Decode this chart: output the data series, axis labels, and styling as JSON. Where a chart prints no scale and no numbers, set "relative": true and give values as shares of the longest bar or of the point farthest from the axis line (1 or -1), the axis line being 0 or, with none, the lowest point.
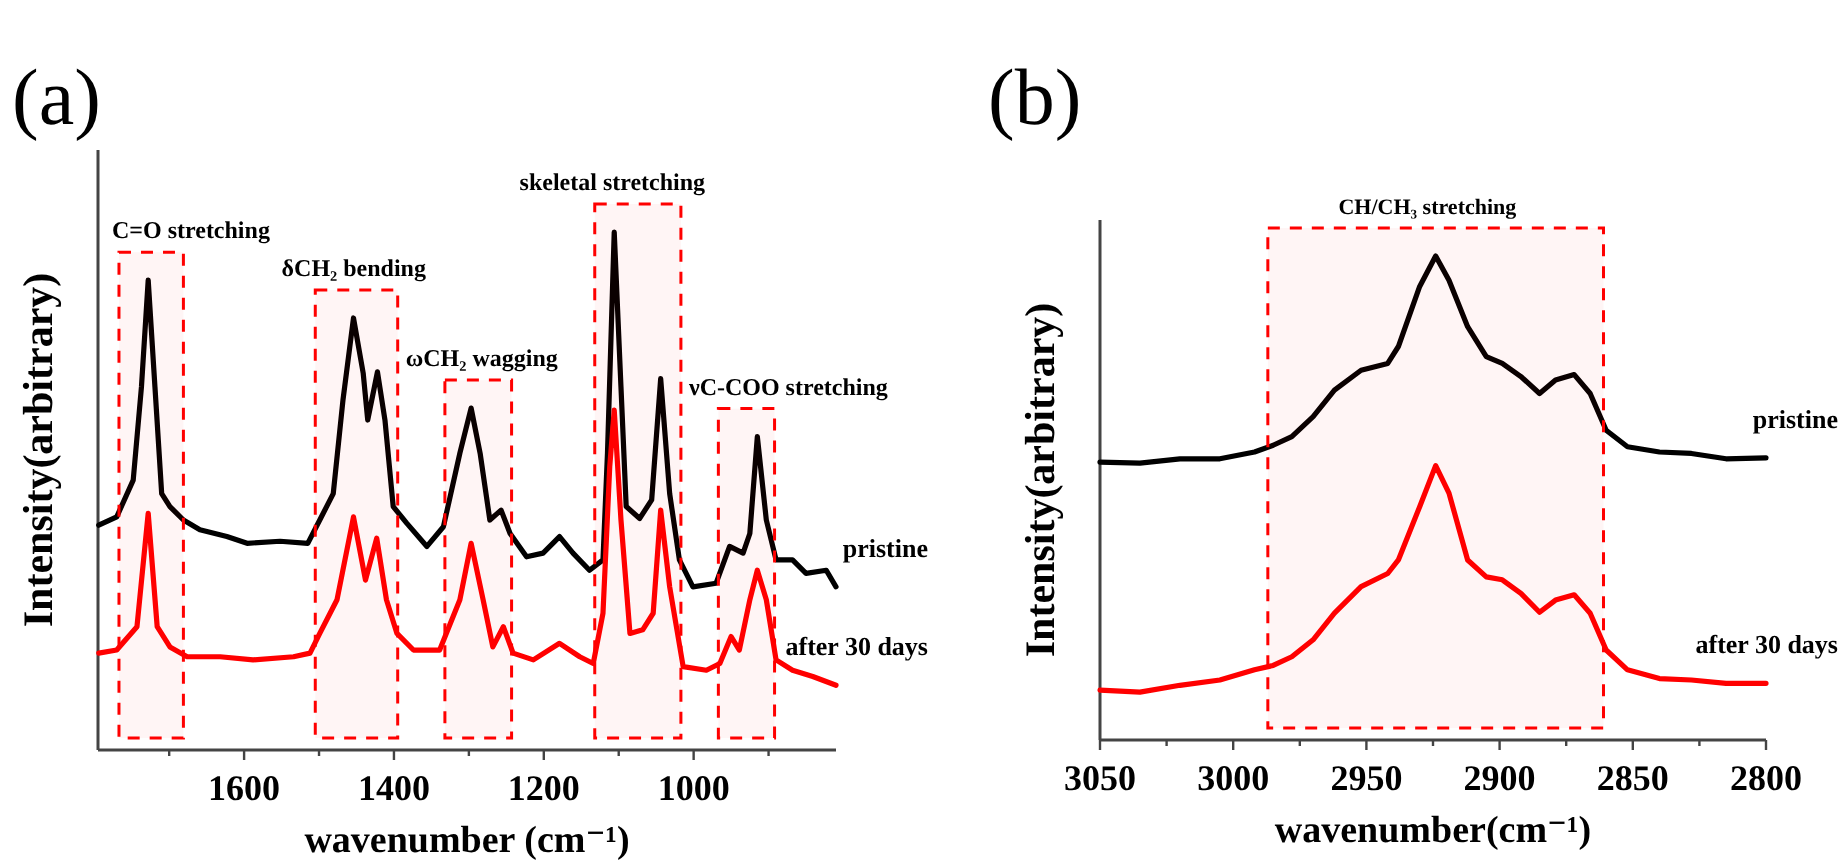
{
  "chart_data": [
    {
      "type": "line",
      "title": "(a)",
      "xlabel": "wavenumber (cm⁻¹)",
      "ylabel": "Intensity(arbitrary)",
      "relative": true,
      "xlim": [
        1795,
        810
      ],
      "xticks": [
        {
          "value": 1700,
          "label": null
        },
        1600,
        {
          "value": 1500,
          "label": null
        },
        1400,
        {
          "value": 1300,
          "label": null
        },
        1200,
        {
          "value": 1100,
          "label": null
        },
        1000,
        {
          "value": 900,
          "label": null
        }
      ],
      "series": [
        {
          "name": "pristine",
          "color": "#000000",
          "x": [
            1794,
            1770,
            1748,
            1737,
            1728,
            1719,
            1710,
            1699,
            1681,
            1659,
            1623,
            1596,
            1552,
            1515,
            1499,
            1481,
            1468,
            1454,
            1441,
            1435,
            1422,
            1412,
            1401,
            1383,
            1356,
            1334,
            1312,
            1297,
            1285,
            1272,
            1257,
            1245,
            1223,
            1201,
            1179,
            1161,
            1139,
            1121,
            1115,
            1106,
            1097,
            1090,
            1072,
            1056,
            1044,
            1032,
            1019,
            1001,
            970,
            952,
            934,
            925,
            915,
            903,
            890,
            868,
            850,
            823,
            810
          ],
          "values": [
            0.434,
            0.45,
            0.521,
            0.701,
            0.907,
            0.701,
            0.495,
            0.47,
            0.444,
            0.425,
            0.412,
            0.399,
            0.403,
            0.399,
            0.444,
            0.495,
            0.676,
            0.834,
            0.727,
            0.637,
            0.73,
            0.637,
            0.47,
            0.438,
            0.393,
            0.431,
            0.573,
            0.66,
            0.573,
            0.444,
            0.463,
            0.418,
            0.373,
            0.38,
            0.412,
            0.38,
            0.347,
            0.367,
            0.573,
            1.0,
            0.701,
            0.47,
            0.447,
            0.483,
            0.717,
            0.495,
            0.367,
            0.315,
            0.322,
            0.393,
            0.38,
            0.418,
            0.605,
            0.444,
            0.367,
            0.367,
            0.341,
            0.347,
            0.315
          ]
        },
        {
          "name": "after 30 days",
          "color": "#ff0000",
          "x": [
            1794,
            1770,
            1743,
            1728,
            1716,
            1699,
            1676,
            1632,
            1588,
            1534,
            1512,
            1499,
            1476,
            1454,
            1438,
            1423,
            1410,
            1396,
            1374,
            1339,
            1312,
            1297,
            1281,
            1268,
            1254,
            1241,
            1214,
            1179,
            1152,
            1134,
            1121,
            1112,
            1106,
            1097,
            1085,
            1068,
            1054,
            1044,
            1032,
            1014,
            983,
            965,
            950,
            939,
            925,
            915,
            903,
            890,
            868,
            841,
            810
          ],
          "values": [
            0.187,
            0.193,
            0.238,
            0.457,
            0.238,
            0.199,
            0.18,
            0.18,
            0.174,
            0.18,
            0.187,
            0.225,
            0.29,
            0.45,
            0.328,
            0.409,
            0.29,
            0.225,
            0.193,
            0.193,
            0.29,
            0.399,
            0.29,
            0.199,
            0.238,
            0.187,
            0.174,
            0.206,
            0.18,
            0.167,
            0.264,
            0.547,
            0.656,
            0.444,
            0.225,
            0.232,
            0.264,
            0.463,
            0.315,
            0.161,
            0.154,
            0.167,
            0.219,
            0.193,
            0.29,
            0.347,
            0.29,
            0.174,
            0.154,
            0.142,
            0.125
          ]
        }
      ],
      "bands": [
        {
          "axis": "x",
          "from": 1767,
          "to": 1681,
          "label": "C=O stretching",
          "color": "#ff0000"
        },
        {
          "axis": "x",
          "from": 1505,
          "to": 1395,
          "label": "δCH₂ bending",
          "color": "#ff0000"
        },
        {
          "axis": "x",
          "from": 1332,
          "to": 1243,
          "label": "ωCH₂ wagging",
          "color": "#ff0000"
        },
        {
          "axis": "x",
          "from": 1132,
          "to": 1017,
          "label": "skeletal stretching",
          "color": "#ff0000"
        },
        {
          "axis": "x",
          "from": 967,
          "to": 892,
          "label": "νC-COO stretching",
          "color": "#ff0000"
        }
      ]
    },
    {
      "type": "line",
      "title": "(b)",
      "xlabel": "wavenumber(cm⁻¹)",
      "ylabel": "Intensity(arbitrary)",
      "relative": true,
      "xlim": [
        3050,
        2800
      ],
      "xticks": [
        3050,
        {
          "value": 3025,
          "label": null
        },
        3000,
        {
          "value": 2975,
          "label": null
        },
        2950,
        {
          "value": 2925,
          "label": null
        },
        2900,
        {
          "value": 2875,
          "label": null
        },
        2850,
        {
          "value": 2825,
          "label": null
        },
        2800
      ],
      "series": [
        {
          "name": "pristine",
          "color": "#000000",
          "x": [
            3050,
            3035,
            3020,
            3005,
            2992,
            2985,
            2978,
            2970,
            2962,
            2952,
            2942,
            2938,
            2930,
            2924,
            2919,
            2912,
            2905,
            2899,
            2892,
            2885,
            2879,
            2872,
            2866,
            2860,
            2852,
            2840,
            2828,
            2815,
            2800
          ],
          "values": [
            0.574,
            0.572,
            0.581,
            0.581,
            0.595,
            0.609,
            0.627,
            0.668,
            0.723,
            0.764,
            0.778,
            0.813,
            0.937,
            1.0,
            0.95,
            0.854,
            0.792,
            0.778,
            0.751,
            0.716,
            0.744,
            0.755,
            0.716,
            0.64,
            0.606,
            0.595,
            0.592,
            0.581,
            0.583
          ]
        },
        {
          "name": "after 30 days",
          "color": "#ff0000",
          "x": [
            3050,
            3035,
            3020,
            3005,
            2992,
            2985,
            2978,
            2970,
            2962,
            2952,
            2942,
            2938,
            2930,
            2924,
            2919,
            2912,
            2905,
            2899,
            2892,
            2885,
            2879,
            2872,
            2866,
            2860,
            2852,
            2840,
            2828,
            2815,
            2800
          ],
          "values": [
            0.103,
            0.099,
            0.113,
            0.124,
            0.145,
            0.154,
            0.172,
            0.207,
            0.262,
            0.317,
            0.344,
            0.372,
            0.482,
            0.567,
            0.51,
            0.372,
            0.337,
            0.331,
            0.303,
            0.264,
            0.289,
            0.3,
            0.262,
            0.186,
            0.145,
            0.127,
            0.124,
            0.117,
            0.117
          ]
        }
      ],
      "bands": [
        {
          "axis": "x",
          "from": 2987,
          "to": 2861,
          "label": "CH/CH₃ stretching",
          "color": "#ff0000"
        }
      ]
    }
  ]
}
